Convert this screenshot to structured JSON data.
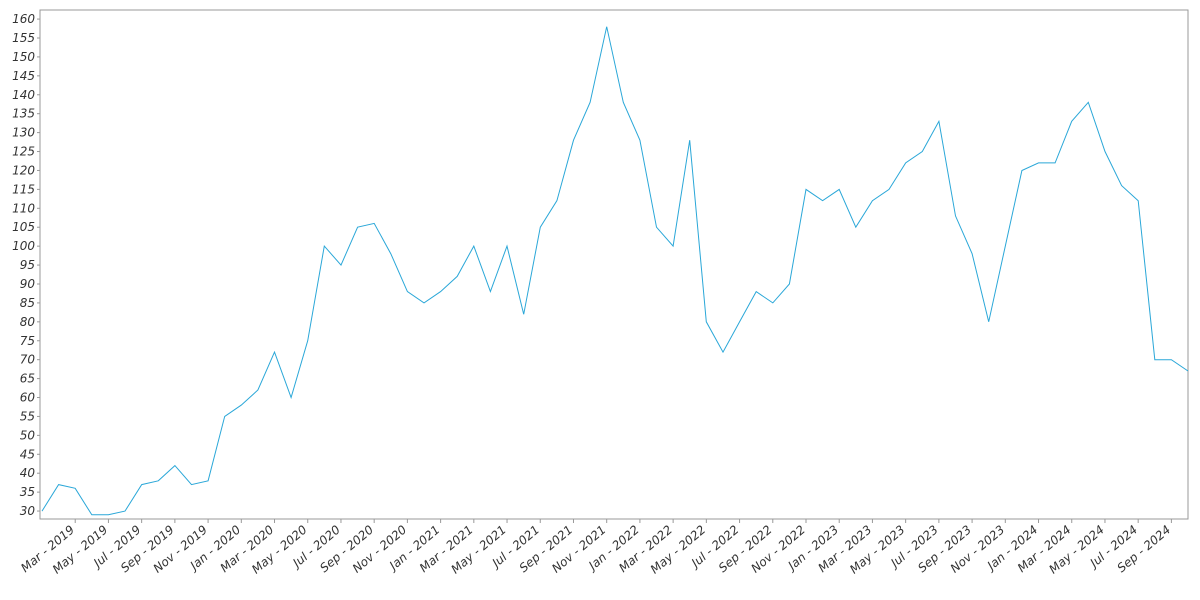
{
  "chart_data": {
    "type": "line",
    "x": [
      "2019-01",
      "2019-02",
      "2019-03",
      "2019-04",
      "2019-05",
      "2019-06",
      "2019-07",
      "2019-08",
      "2019-09",
      "2019-10",
      "2019-11",
      "2019-12",
      "2020-01",
      "2020-02",
      "2020-03",
      "2020-04",
      "2020-05",
      "2020-06",
      "2020-07",
      "2020-08",
      "2020-09",
      "2020-10",
      "2020-11",
      "2020-12",
      "2021-01",
      "2021-02",
      "2021-03",
      "2021-04",
      "2021-05",
      "2021-06",
      "2021-07",
      "2021-08",
      "2021-09",
      "2021-10",
      "2021-11",
      "2021-12",
      "2022-01",
      "2022-02",
      "2022-03",
      "2022-04",
      "2022-05",
      "2022-06",
      "2022-07",
      "2022-08",
      "2022-09",
      "2022-10",
      "2022-11",
      "2022-12",
      "2023-01",
      "2023-02",
      "2023-03",
      "2023-04",
      "2023-05",
      "2023-06",
      "2023-07",
      "2023-08",
      "2023-09",
      "2023-10",
      "2023-11",
      "2023-12",
      "2024-01",
      "2024-02",
      "2024-03",
      "2024-04",
      "2024-05",
      "2024-06",
      "2024-07",
      "2024-08",
      "2024-09",
      "2024-10"
    ],
    "values": [
      30,
      37,
      36,
      29,
      29,
      30,
      37,
      38,
      42,
      37,
      38,
      55,
      58,
      62,
      72,
      60,
      75,
      100,
      95,
      105,
      106,
      98,
      88,
      85,
      88,
      92,
      100,
      88,
      100,
      82,
      105,
      112,
      128,
      138,
      158,
      138,
      128,
      105,
      100,
      128,
      80,
      72,
      80,
      88,
      85,
      90,
      115,
      112,
      115,
      105,
      112,
      115,
      122,
      125,
      133,
      108,
      98,
      80,
      100,
      120,
      122,
      122,
      133,
      138,
      125,
      116,
      112,
      70,
      70,
      67
    ],
    "color": "#2aa7d8",
    "xlim": [
      "2019-01",
      "2024-10"
    ],
    "xticks": [
      {
        "value": "2019-03",
        "label": "Mar - 2019"
      },
      {
        "value": "2019-05",
        "label": "May - 2019"
      },
      {
        "value": "2019-07",
        "label": "Jul - 2019"
      },
      {
        "value": "2019-09",
        "label": "Sep - 2019"
      },
      {
        "value": "2019-11",
        "label": "Nov - 2019"
      },
      {
        "value": "2020-01",
        "label": "Jan - 2020"
      },
      {
        "value": "2020-03",
        "label": "Mar - 2020"
      },
      {
        "value": "2020-05",
        "label": "May - 2020"
      },
      {
        "value": "2020-07",
        "label": "Jul - 2020"
      },
      {
        "value": "2020-09",
        "label": "Sep - 2020"
      },
      {
        "value": "2020-11",
        "label": "Nov - 2020"
      },
      {
        "value": "2021-01",
        "label": "Jan - 2021"
      },
      {
        "value": "2021-03",
        "label": "Mar - 2021"
      },
      {
        "value": "2021-05",
        "label": "May - 2021"
      },
      {
        "value": "2021-07",
        "label": "Jul - 2021"
      },
      {
        "value": "2021-09",
        "label": "Sep - 2021"
      },
      {
        "value": "2021-11",
        "label": "Nov - 2021"
      },
      {
        "value": "2022-01",
        "label": "Jan - 2022"
      },
      {
        "value": "2022-03",
        "label": "Mar - 2022"
      },
      {
        "value": "2022-05",
        "label": "May - 2022"
      },
      {
        "value": "2022-07",
        "label": "Jul - 2022"
      },
      {
        "value": "2022-09",
        "label": "Sep - 2022"
      },
      {
        "value": "2022-11",
        "label": "Nov - 2022"
      },
      {
        "value": "2023-01",
        "label": "Jan - 2023"
      },
      {
        "value": "2023-03",
        "label": "Mar - 2023"
      },
      {
        "value": "2023-05",
        "label": "May - 2023"
      },
      {
        "value": "2023-07",
        "label": "Jul - 2023"
      },
      {
        "value": "2023-09",
        "label": "Sep - 2023"
      },
      {
        "value": "2023-11",
        "label": "Nov - 2023"
      },
      {
        "value": "2024-01",
        "label": "Jan - 2024"
      },
      {
        "value": "2024-03",
        "label": "Mar - 2024"
      },
      {
        "value": "2024-05",
        "label": "May - 2024"
      },
      {
        "value": "2024-07",
        "label": "Jul - 2024"
      },
      {
        "value": "2024-09",
        "label": "Sep - 2024"
      }
    ],
    "ylim": [
      27.9,
      162.4
    ],
    "yticks": [
      30,
      35,
      40,
      45,
      50,
      55,
      60,
      65,
      70,
      75,
      80,
      85,
      90,
      95,
      100,
      105,
      110,
      115,
      120,
      125,
      130,
      135,
      140,
      145,
      150,
      155,
      160
    ],
    "grid": false
  }
}
